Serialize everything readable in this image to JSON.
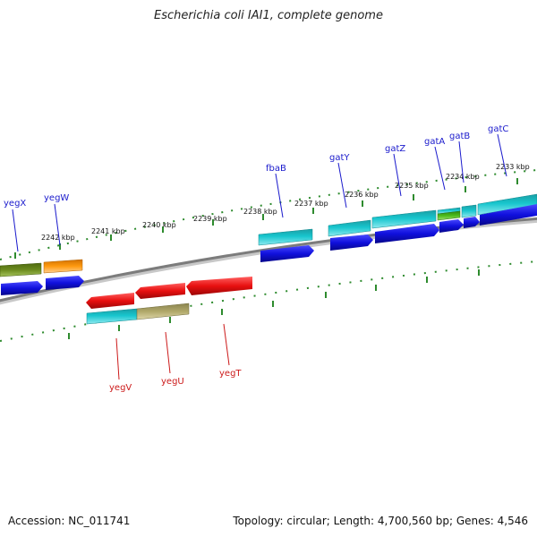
{
  "title": "Escherichia coli IAI1, complete genome",
  "footer": {
    "accession_prefix": "Accession:",
    "accession": "NC_011741",
    "summary": "Topology: circular; Length: 4,700,560 bp; Genes: 4,546"
  },
  "colors": {
    "backbone": "#808080",
    "ticks": "#2e8b2e",
    "forward_label": "#1a1acc",
    "reverse_label": "#cc1a1a",
    "cds_blue": "#1010dd",
    "cds_red": "#e81010",
    "cds_cyan": "#1ec8d0",
    "cds_olive": "#6b8a1e",
    "cds_orange": "#ff9a10",
    "cds_khaki": "#b0a86a",
    "cds_green": "#4cbc1c"
  },
  "kbp_ticks": [
    "2242 kbp",
    "2241 kbp",
    "2240 kbp",
    "2239 kbp",
    "2238 kbp",
    "2237 kbp",
    "2236 kbp",
    "2235 kbp",
    "2234 kbp",
    "2233 kbp"
  ],
  "forward_genes": [
    "yegX",
    "yegW",
    "fbaB",
    "gatY",
    "gatZ",
    "gatA",
    "gatB",
    "gatC"
  ],
  "reverse_genes": [
    "yegV",
    "yegU",
    "yegT"
  ]
}
